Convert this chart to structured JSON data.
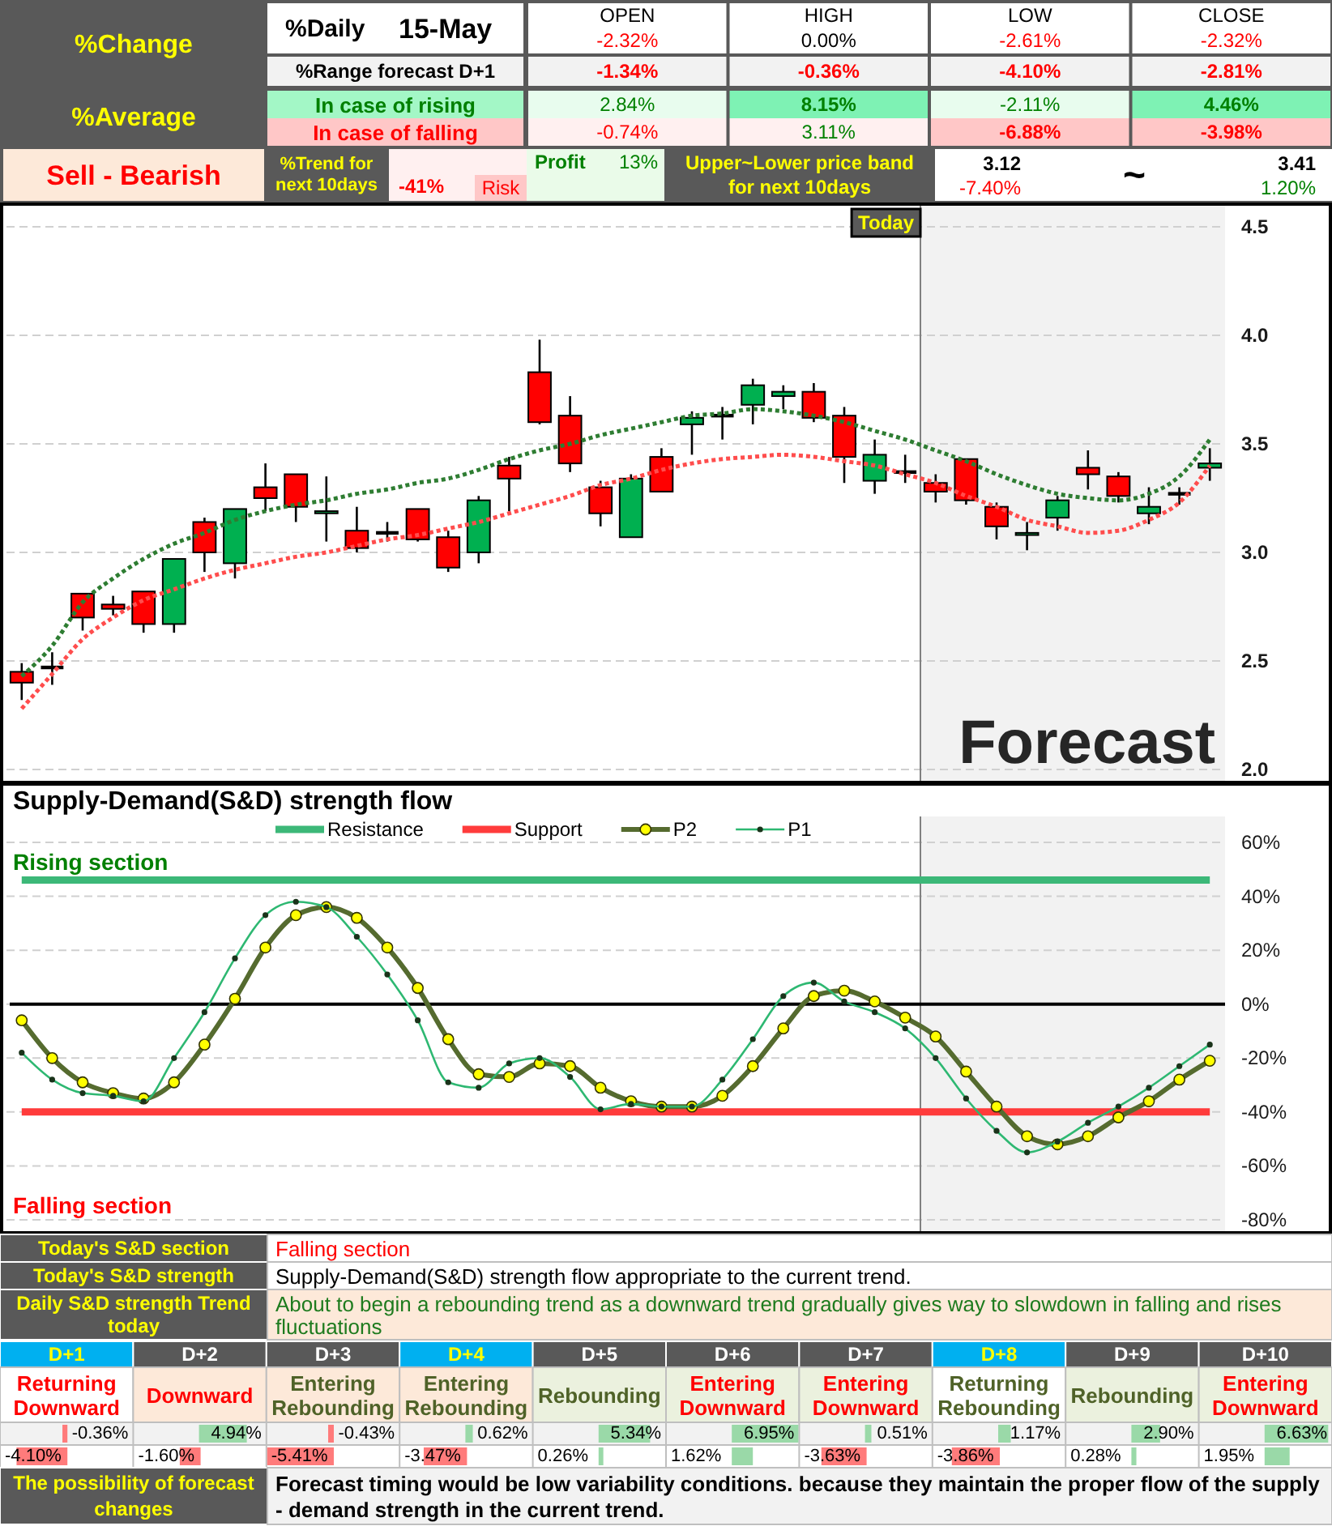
{
  "chart_data": [
    {
      "type": "other",
      "annotations": [
        "%Change",
        "%Average",
        "Sell - Bearish",
        "%Daily",
        "15-May",
        "OPEN",
        "HIGH",
        "LOW",
        "CLOSE",
        "-2.32%",
        "0.00%",
        "-2.61%",
        "-2.32%",
        "%Range forecast D+1",
        "-1.34%",
        "-0.36%",
        "-4.10%",
        "-2.81%",
        "In case of rising",
        "2.84%",
        "8.15%",
        "-2.11%",
        "4.46%",
        "In case of falling",
        "-0.74%",
        "3.11%",
        "-6.88%",
        "-3.98%",
        "%Trend for next 10days",
        "-41%",
        "Risk",
        "Profit",
        "13%",
        "Upper~Lower price band for next 10days",
        "3.12",
        "-7.40%",
        "~",
        "3.41",
        "1.20%"
      ]
    },
    {
      "type": "candlestick",
      "categories": [
        null,
        null,
        null,
        null,
        null,
        null,
        null,
        null,
        null,
        null,
        null,
        null,
        null,
        null,
        null,
        null,
        null,
        null,
        null,
        null,
        null,
        null,
        null,
        null,
        null,
        null,
        null,
        null,
        null,
        null,
        null,
        null,
        null,
        null,
        null,
        null,
        null,
        null,
        null,
        null
      ],
      "ohlc": [
        [
          2.45,
          2.49,
          2.32,
          2.4
        ],
        [
          2.47,
          2.54,
          2.39,
          2.47
        ],
        [
          2.81,
          2.81,
          2.64,
          2.7
        ],
        [
          2.76,
          2.8,
          2.71,
          2.74
        ],
        [
          2.82,
          2.82,
          2.63,
          2.67
        ],
        [
          2.67,
          2.97,
          2.63,
          2.97
        ],
        [
          3.14,
          3.16,
          2.91,
          3.0
        ],
        [
          2.95,
          3.2,
          2.88,
          3.2
        ],
        [
          3.3,
          3.41,
          3.19,
          3.25
        ],
        [
          3.36,
          3.36,
          3.14,
          3.21
        ],
        [
          3.18,
          3.35,
          3.05,
          3.19
        ],
        [
          3.1,
          3.21,
          3.0,
          3.02
        ],
        [
          3.09,
          3.14,
          3.05,
          3.09
        ],
        [
          3.2,
          3.2,
          3.05,
          3.06
        ],
        [
          3.07,
          3.1,
          2.91,
          2.93
        ],
        [
          3.0,
          3.26,
          2.95,
          3.24
        ],
        [
          3.4,
          3.44,
          3.19,
          3.34
        ],
        [
          3.83,
          3.98,
          3.59,
          3.6
        ],
        [
          3.63,
          3.72,
          3.37,
          3.41
        ],
        [
          3.3,
          3.33,
          3.12,
          3.18
        ],
        [
          3.07,
          3.36,
          3.07,
          3.34
        ],
        [
          3.44,
          3.48,
          3.28,
          3.28
        ],
        [
          3.59,
          3.65,
          3.45,
          3.62
        ],
        [
          3.63,
          3.67,
          3.52,
          3.63
        ],
        [
          3.68,
          3.8,
          3.59,
          3.77
        ],
        [
          3.72,
          3.77,
          3.66,
          3.74
        ],
        [
          3.74,
          3.78,
          3.6,
          3.62
        ],
        [
          3.63,
          3.67,
          3.32,
          3.44
        ],
        [
          3.33,
          3.52,
          3.27,
          3.45
        ],
        [
          3.37,
          3.45,
          3.32,
          3.37
        ],
        [
          3.32,
          3.36,
          3.23,
          3.28
        ],
        [
          3.43,
          3.43,
          3.22,
          3.24
        ],
        [
          3.21,
          3.23,
          3.06,
          3.12
        ],
        [
          3.08,
          3.14,
          3.01,
          3.09
        ],
        [
          3.16,
          3.26,
          3.1,
          3.24
        ],
        [
          3.39,
          3.47,
          3.29,
          3.36
        ],
        [
          3.35,
          3.37,
          3.23,
          3.26
        ],
        [
          3.18,
          3.3,
          3.13,
          3.21
        ],
        [
          3.27,
          3.3,
          3.22,
          3.27
        ],
        [
          3.39,
          3.48,
          3.33,
          3.41
        ]
      ],
      "colors": [
        "#ff0000",
        "#000000",
        "#ff0000",
        "#ff0000",
        "#ff0000",
        "#00b050",
        "#ff0000",
        "#00b050",
        "#ff0000",
        "#ff0000",
        "#00b050",
        "#ff0000",
        "#000000",
        "#ff0000",
        "#ff0000",
        "#00b050",
        "#ff0000",
        "#ff0000",
        "#ff0000",
        "#ff0000",
        "#00b050",
        "#ff0000",
        "#00b050",
        "#000000",
        "#00b050",
        "#00b050",
        "#ff0000",
        "#ff0000",
        "#00b050",
        "#000000",
        "#ff0000",
        "#ff0000",
        "#ff0000",
        "#00b050",
        "#00b050",
        "#ff0000",
        "#ff0000",
        "#00b050",
        "#000000",
        "#00b050"
      ],
      "series": [
        {
          "type": "line",
          "color": "#2e7d32",
          "line_style": "dotted",
          "values": [
            2.43,
            2.57,
            2.77,
            2.88,
            2.97,
            3.04,
            3.09,
            3.15,
            3.19,
            3.22,
            3.24,
            3.27,
            3.29,
            3.32,
            3.34,
            3.38,
            3.43,
            3.47,
            3.5,
            3.54,
            3.57,
            3.6,
            3.63,
            3.64,
            3.66,
            3.65,
            3.63,
            3.6,
            3.56,
            3.52,
            3.47,
            3.42,
            3.36,
            3.31,
            3.27,
            3.25,
            3.24,
            3.27,
            3.35,
            3.52
          ]
        },
        {
          "type": "line",
          "color": "#ff4d4d",
          "line_style": "dotted",
          "values": [
            2.28,
            2.44,
            2.6,
            2.7,
            2.78,
            2.83,
            2.88,
            2.92,
            2.95,
            2.98,
            3.0,
            3.03,
            3.06,
            3.08,
            3.11,
            3.14,
            3.18,
            3.22,
            3.26,
            3.31,
            3.34,
            3.38,
            3.41,
            3.43,
            3.44,
            3.45,
            3.44,
            3.42,
            3.4,
            3.36,
            3.32,
            3.26,
            3.21,
            3.15,
            3.12,
            3.09,
            3.1,
            3.15,
            3.23,
            3.4
          ]
        }
      ],
      "ylim": [
        2,
        4.5
      ],
      "yticks": [
        {
          "value": 2,
          "label": "2.0"
        },
        {
          "value": 2.5,
          "label": "2.5"
        },
        {
          "value": 3,
          "label": "3.0"
        },
        {
          "value": 3.5,
          "label": "3.5"
        },
        {
          "value": 4,
          "label": "4.0"
        },
        {
          "value": 4.5,
          "label": "4.5"
        }
      ],
      "grid": "y",
      "annotations": [
        "Today",
        "Forecast"
      ]
    },
    {
      "type": "line",
      "title": "Supply-Demand(S&D) strength flow",
      "categories": [
        null,
        null,
        null,
        null,
        null,
        null,
        null,
        null,
        null,
        null,
        null,
        null,
        null,
        null,
        null,
        null,
        null,
        null,
        null,
        null,
        null,
        null,
        null,
        null,
        null,
        null,
        null,
        null,
        null,
        null,
        null,
        null,
        null,
        null,
        null,
        null,
        null,
        null,
        null,
        null
      ],
      "series": [
        {
          "name": "Resistance",
          "color": "#3cb878",
          "values": [
            46,
            46,
            46,
            46,
            46,
            46,
            46,
            46,
            46,
            46,
            46,
            46,
            46,
            46,
            46,
            46,
            46,
            46,
            46,
            46,
            46,
            46,
            46,
            46,
            46,
            46,
            46,
            46,
            46,
            46,
            46,
            46,
            46,
            46,
            46,
            46,
            46,
            46,
            46,
            46
          ]
        },
        {
          "name": "Support",
          "color": "#ff3b3b",
          "values": [
            -40,
            -40,
            -40,
            -40,
            -40,
            -40,
            -40,
            -40,
            -40,
            -40,
            -40,
            -40,
            -40,
            -40,
            -40,
            -40,
            -40,
            -40,
            -40,
            -40,
            -40,
            -40,
            -40,
            -40,
            -40,
            -40,
            -40,
            -40,
            -40,
            -40,
            -40,
            -40,
            -40,
            -40,
            -40,
            -40,
            -40,
            -40,
            -40,
            -40
          ]
        },
        {
          "name": "P2",
          "color": "#556b2f",
          "marker": "circle",
          "values": [
            -6,
            -20,
            -29,
            -33,
            -35,
            -29,
            -15,
            2,
            21,
            33,
            36,
            32,
            21,
            6,
            -13,
            -26,
            -27,
            -22,
            -23,
            -31,
            -36,
            -38,
            -38,
            -34,
            -23,
            -9,
            3,
            5,
            1,
            -5,
            -12,
            -25,
            -38,
            -49,
            -52,
            -49,
            -42,
            -36,
            -28,
            -21
          ]
        },
        {
          "name": "P1",
          "color": "#2eb872",
          "marker": "circle",
          "values": [
            -18,
            -28,
            -33,
            -34,
            -36,
            -20,
            -3,
            17,
            33,
            38,
            36,
            25,
            11,
            -6,
            -29,
            -31,
            -22,
            -20,
            -27,
            -39,
            -37,
            -38,
            -38,
            -28,
            -13,
            3,
            8,
            1,
            -3,
            -9,
            -20,
            -35,
            -47,
            -55,
            -51,
            -44,
            -38,
            -31,
            -23,
            -15
          ]
        }
      ],
      "ylim": [
        -80,
        60
      ],
      "yticks": [
        {
          "value": 60,
          "label": "60%"
        },
        {
          "value": 40,
          "label": "40%"
        },
        {
          "value": 20,
          "label": "20%"
        },
        {
          "value": 0,
          "label": "0%"
        },
        {
          "value": -20,
          "label": "-20%"
        },
        {
          "value": -40,
          "label": "-40%"
        },
        {
          "value": -60,
          "label": "-60%"
        },
        {
          "value": -80,
          "label": "-80%"
        }
      ],
      "grid": "y",
      "legend": "top",
      "ref_lines": [
        {
          "axis": "y",
          "value": 0,
          "color": "#000000"
        }
      ],
      "annotations": [
        "Rising section",
        "Falling section"
      ]
    },
    {
      "type": "other",
      "annotations": [
        "Today's S&D section",
        "Falling section",
        "Today's S&D strength",
        "Supply-Demand(S&D) strength flow appropriate to the current trend.",
        "Daily S&D strength Trend today",
        "About to begin a rebounding trend as a downward trend gradually gives way to slowdown in falling and rises fluctuations"
      ]
    },
    {
      "type": "other",
      "categories": [
        "D+1",
        "D+2",
        "D+3",
        "D+4",
        "D+5",
        "D+6",
        "D+7",
        "D+8",
        "D+9",
        "D+10"
      ],
      "annotations": [
        "Returning Downward",
        "Downward",
        "Entering Rebounding",
        "Entering Rebounding",
        "Rebounding",
        "Entering Downward",
        "Entering Downward",
        "Returning Rebounding",
        "Rebounding",
        "Entering Downward"
      ],
      "series": [
        {
          "values": [
            -0.36,
            4.94,
            -0.43,
            0.62,
            5.34,
            6.95,
            0.51,
            1.17,
            2.9,
            6.63
          ],
          "colors": [
            "#ff7b7b",
            "#9ad9a8",
            "#ff7b7b",
            "#9ad9a8",
            "#9ad9a8",
            "#9ad9a8",
            "#9ad9a8",
            "#9ad9a8",
            "#9ad9a8",
            "#9ad9a8"
          ],
          "value_labels": [
            "-0.36%",
            "4.94%",
            "-0.43%",
            "0.62%",
            "5.34%",
            "6.95%",
            "0.51%",
            "1.17%",
            "2.90%",
            "6.63%"
          ]
        },
        {
          "values": [
            -4.1,
            -1.6,
            -5.41,
            -3.47,
            0.26,
            1.62,
            -3.63,
            -3.86,
            0.28,
            1.95
          ],
          "colors": [
            "#ff7b7b",
            "#ff7b7b",
            "#ff7b7b",
            "#ff7b7b",
            "#9ad9a8",
            "#9ad9a8",
            "#ff7b7b",
            "#ff7b7b",
            "#9ad9a8",
            "#9ad9a8"
          ],
          "value_labels": [
            "-4.10%",
            "-1.60%",
            "-5.41%",
            "-3.47%",
            "0.26%",
            "1.62%",
            "-3.63%",
            "-3.86%",
            "0.28%",
            "1.95%"
          ]
        }
      ]
    },
    {
      "type": "other",
      "annotations": [
        "The possibility of forecast changes",
        "Forecast timing would be low variability conditions. because they maintain the proper flow of the supply - demand strength in the current trend."
      ]
    }
  ]
}
